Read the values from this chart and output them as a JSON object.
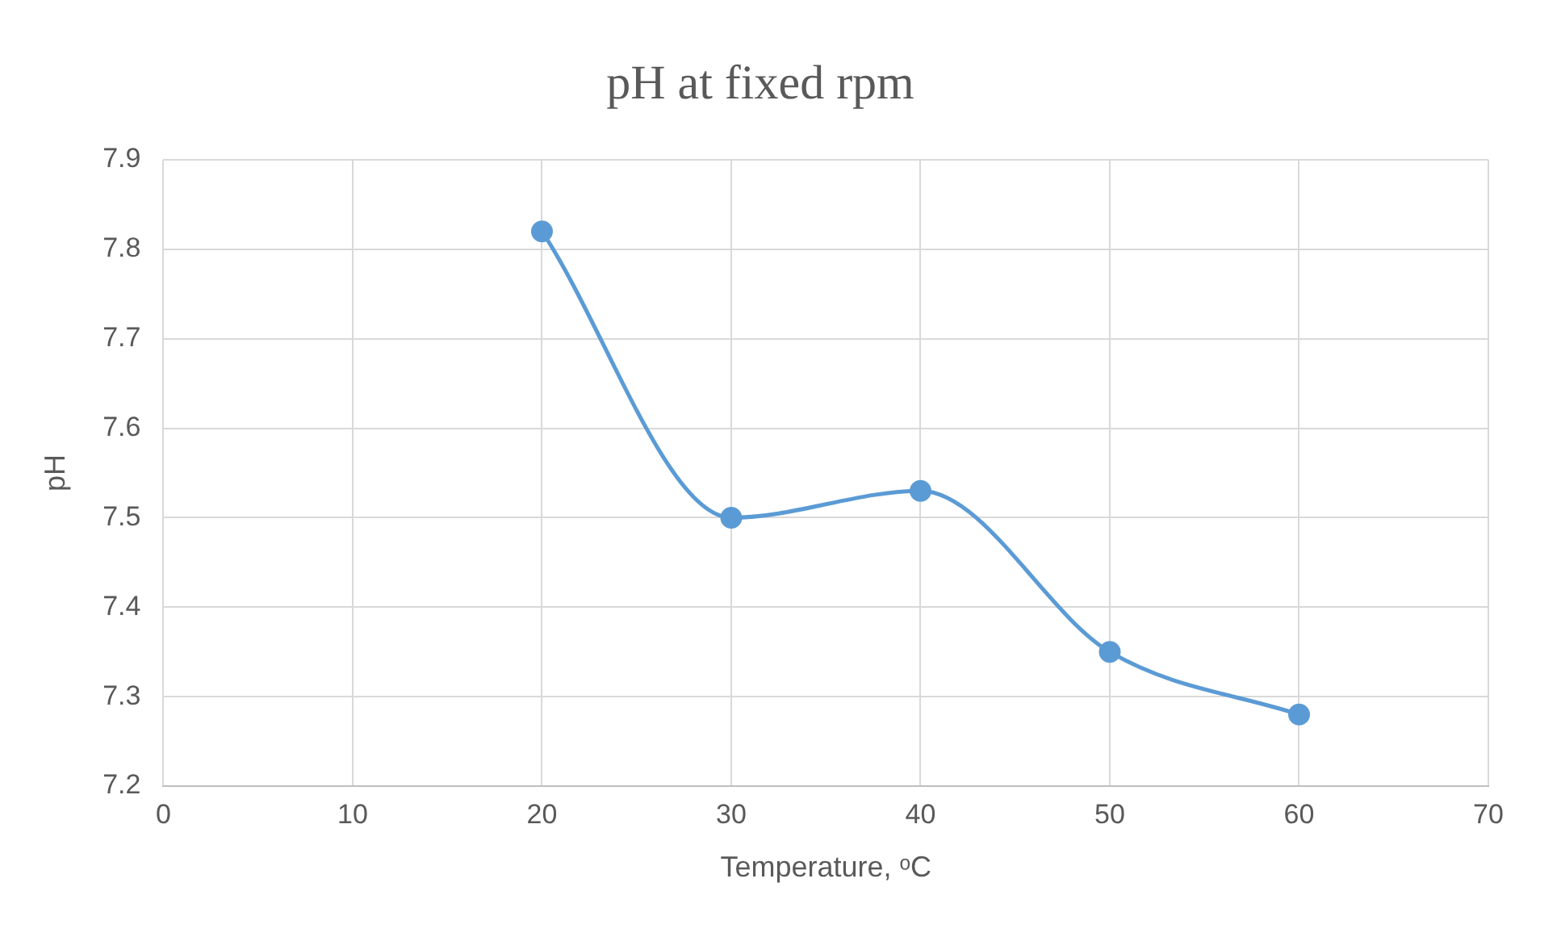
{
  "chart_data": {
    "type": "line",
    "title": "pH at fixed rpm",
    "xlabel": "Temperature, ᵒC",
    "ylabel": "pH",
    "x": [
      20,
      30,
      40,
      50,
      60
    ],
    "series": [
      {
        "color": "#5b9bd5",
        "values": [
          7.82,
          7.5,
          7.53,
          7.35,
          7.28
        ]
      }
    ],
    "xlim": [
      0,
      70
    ],
    "xticks": [
      0,
      10,
      20,
      30,
      40,
      50,
      60,
      70
    ],
    "ylim": [
      7.2,
      7.9
    ],
    "yticks": [
      7.2,
      7.3,
      7.4,
      7.5,
      7.6,
      7.7,
      7.8,
      7.9
    ],
    "grid": true,
    "legend": false,
    "marker": "circle",
    "line_style": "solid"
  }
}
